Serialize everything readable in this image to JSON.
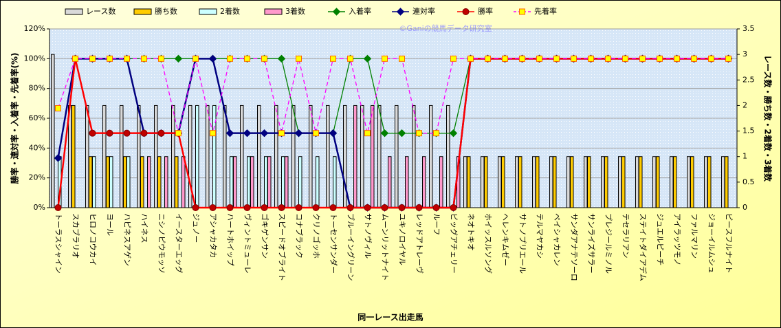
{
  "chart_data": {
    "type": "combo",
    "watermark": "©Ganiの競馬データ研究室",
    "x_label": "同一レース出走馬",
    "y_label": "勝率・連対率・入着率・先着率(%)",
    "y2_label": "レース数・勝ち数・2着数・3着数",
    "categories": [
      "トーラスシャイン",
      "スカブラリオ",
      "ヒロノコウカイ",
      "ヨール",
      "ハピネスアゲン",
      "ハイネス",
      "ニシノピウモッソ",
      "イースターエッグ",
      "ジュノー",
      "アシャカタカ",
      "ハートホイップ",
      "ヴィントミューレ",
      "ゴキゲンサン",
      "スピードオブライト",
      "コナブラック",
      "クリノゴッホ",
      "トーセンサンダー",
      "ブルーイングリーン",
      "サトノヴィル",
      "ムーンリットナイト",
      "ユキノロイヤル",
      "レッドアトレーヴ",
      "ルーフ",
      "ビッグアチェリー",
      "ネオトキオ",
      "ホイッスルソング",
      "ヘレンキムゼー",
      "サトノプリエール",
      "テルマヤカシ",
      "ベイシャカレン",
      "サンダアナテソーロ",
      "サンライズサラー",
      "プレジールミノル",
      "テセラリアン",
      "ステイトダイアデム",
      "ジュエルピーチ",
      "アイラッツモノ",
      "ファルマリン",
      "ジョーイルムシュ",
      "ピースフルナイト"
    ],
    "ylim": [
      0,
      120
    ],
    "yticks": [
      {
        "value": 0,
        "label": "0%"
      },
      {
        "value": 20,
        "label": "20%"
      },
      {
        "value": 40,
        "label": "40%"
      },
      {
        "value": 60,
        "label": "60%"
      },
      {
        "value": 80,
        "label": "80%"
      },
      {
        "value": 100,
        "label": "100%"
      },
      {
        "value": 120,
        "label": "120%"
      }
    ],
    "y2lim": [
      0,
      3.5
    ],
    "y2ticks": [
      0,
      0.5,
      1,
      1.5,
      2,
      2.5,
      3,
      3.5
    ],
    "grid": true,
    "legend": "top",
    "series": [
      {
        "name": "レース数",
        "kind": "bar",
        "axis": "y2",
        "color": "#d9d9d9",
        "values": [
          3,
          2,
          2,
          2,
          2,
          2,
          2,
          2,
          2,
          2,
          2,
          2,
          2,
          2,
          2,
          2,
          2,
          2,
          2,
          2,
          2,
          2,
          2,
          2,
          1,
          1,
          1,
          1,
          1,
          1,
          1,
          1,
          1,
          1,
          1,
          1,
          1,
          1,
          1,
          1
        ]
      },
      {
        "name": "勝ち数",
        "kind": "bar",
        "axis": "y2",
        "color": "#ffcc00",
        "values": [
          0,
          2,
          1,
          1,
          1,
          1,
          1,
          1,
          0,
          0,
          0,
          0,
          0,
          0,
          0,
          0,
          0,
          0,
          0,
          0,
          0,
          0,
          0,
          0,
          1,
          1,
          1,
          1,
          1,
          1,
          1,
          1,
          1,
          1,
          1,
          1,
          1,
          1,
          1,
          1
        ]
      },
      {
        "name": "2着数",
        "kind": "bar",
        "axis": "y2",
        "color": "#ccffff",
        "values": [
          1,
          0,
          1,
          1,
          1,
          0,
          0,
          0,
          2,
          2,
          1,
          1,
          1,
          1,
          1,
          1,
          1,
          0,
          0,
          0,
          0,
          0,
          0,
          0,
          0,
          0,
          0,
          0,
          0,
          0,
          0,
          0,
          0,
          0,
          0,
          0,
          0,
          0,
          0,
          0
        ]
      },
      {
        "name": "3着数",
        "kind": "bar",
        "axis": "y2",
        "color": "#ff99cc",
        "values": [
          0,
          0,
          0,
          0,
          0,
          1,
          1,
          1,
          0,
          0,
          1,
          1,
          1,
          1,
          0,
          0,
          0,
          2,
          2,
          1,
          1,
          1,
          1,
          1,
          0,
          0,
          0,
          0,
          0,
          0,
          0,
          0,
          0,
          0,
          0,
          0,
          0,
          0,
          0,
          0
        ]
      },
      {
        "name": "入着率",
        "kind": "line",
        "color": "#008000",
        "marker": "diamond",
        "marker_fill": "#008000",
        "dashed": false,
        "values": [
          33.3,
          100,
          100,
          100,
          100,
          100,
          100,
          100,
          100,
          100,
          100,
          100,
          100,
          100,
          50,
          50,
          50,
          100,
          100,
          50,
          50,
          50,
          50,
          50,
          100,
          100,
          100,
          100,
          100,
          100,
          100,
          100,
          100,
          100,
          100,
          100,
          100,
          100,
          100,
          100
        ]
      },
      {
        "name": "連対率",
        "kind": "line",
        "color": "#000080",
        "marker": "diamond",
        "marker_fill": "#000080",
        "dashed": false,
        "values": [
          33.3,
          100,
          100,
          100,
          100,
          50,
          50,
          50,
          100,
          100,
          50,
          50,
          50,
          50,
          50,
          50,
          50,
          0,
          0,
          0,
          0,
          0,
          0,
          0,
          100,
          100,
          100,
          100,
          100,
          100,
          100,
          100,
          100,
          100,
          100,
          100,
          100,
          100,
          100,
          100
        ]
      },
      {
        "name": "勝率",
        "kind": "line",
        "color": "#ff0000",
        "marker": "circle",
        "marker_fill": "#c00000",
        "dashed": false,
        "values": [
          0,
          100,
          50,
          50,
          50,
          50,
          50,
          50,
          0,
          0,
          0,
          0,
          0,
          0,
          0,
          0,
          0,
          0,
          0,
          0,
          0,
          0,
          0,
          0,
          100,
          100,
          100,
          100,
          100,
          100,
          100,
          100,
          100,
          100,
          100,
          100,
          100,
          100,
          100,
          100
        ]
      },
      {
        "name": "先着率",
        "kind": "line",
        "color": "#ff00ff",
        "marker": "square",
        "marker_fill": "#ffff00",
        "dashed": true,
        "values": [
          66.7,
          100,
          100,
          100,
          100,
          100,
          100,
          50,
          100,
          50,
          100,
          100,
          100,
          50,
          100,
          50,
          100,
          100,
          50,
          100,
          100,
          50,
          50,
          100,
          100,
          100,
          100,
          100,
          100,
          100,
          100,
          100,
          100,
          100,
          100,
          100,
          100,
          100,
          100,
          100
        ]
      }
    ]
  }
}
